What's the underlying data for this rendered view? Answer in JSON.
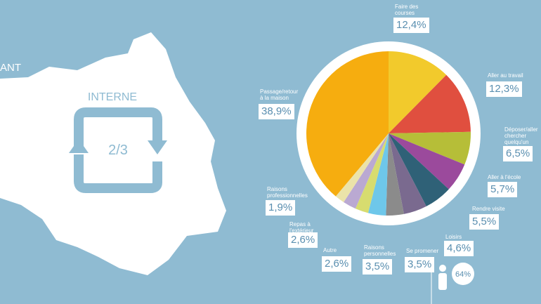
{
  "map": {
    "region_label": "ANT",
    "internal": "INTERNE",
    "share": "2/3"
  },
  "walkers": "64%",
  "chart_data": {
    "type": "pie",
    "categories": [
      "Faire des courses",
      "Aller au travail",
      "Déposer/aller chercher quelqu'un",
      "Aller à l'école",
      "Rendre visite",
      "Loisirs",
      "Se promener",
      "Raisons personnelles",
      "Autre",
      "Repas à l'extérieur",
      "Raisons professionnelles",
      "Passage/retour à la maison"
    ],
    "values": [
      12.4,
      12.3,
      6.5,
      5.7,
      5.5,
      4.6,
      3.5,
      3.5,
      2.6,
      2.6,
      1.9,
      38.9
    ],
    "value_labels": [
      "12,4%",
      "12,3%",
      "6,5%",
      "5,7%",
      "5,5%",
      "4,6%",
      "3,5%",
      "3,5%",
      "2,6%",
      "2,6%",
      "1,9%",
      "38,9%"
    ],
    "colors": [
      "#f2ca2c",
      "#e04f3f",
      "#b6be38",
      "#9b4a9c",
      "#2f6177",
      "#7a6a8f",
      "#8b8b8b",
      "#6ec7ea",
      "#d7dc6f",
      "#baa9d2",
      "#ebe3a9",
      "#f6ad0f"
    ]
  }
}
